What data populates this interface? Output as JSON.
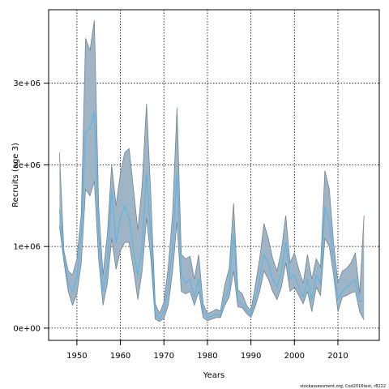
{
  "chart_data": {
    "type": "area",
    "xlabel": "Years",
    "ylabel": "Recruits (age 3)",
    "xlim": [
      1943.5,
      2019.5
    ],
    "ylim": [
      -150000,
      3900000
    ],
    "x_ticks": [
      1950,
      1960,
      1970,
      1980,
      1990,
      2000,
      2010
    ],
    "x_tick_labels": [
      "1950",
      "1960",
      "1970",
      "1980",
      "1990",
      "2000",
      "2010"
    ],
    "y_ticks": [
      0,
      1000000,
      2000000,
      3000000
    ],
    "y_tick_labels": [
      "0e+00",
      "1e+06",
      "2e+06",
      "3e+06"
    ],
    "grid": true,
    "colors": {
      "band_fill": "#9fb4c4",
      "band_edge": "#6f8595",
      "median_line": "#4fb6ee",
      "grid": "#000000"
    },
    "x": [
      1946,
      1947,
      1948,
      1949,
      1950,
      1951,
      1952,
      1953,
      1954,
      1955,
      1956,
      1957,
      1958,
      1959,
      1960,
      1961,
      1962,
      1963,
      1964,
      1965,
      1966,
      1967,
      1968,
      1969,
      1970,
      1971,
      1972,
      1973,
      1974,
      1975,
      1976,
      1977,
      1978,
      1979,
      1980,
      1981,
      1982,
      1983,
      1984,
      1985,
      1986,
      1987,
      1988,
      1989,
      1990,
      1991,
      1992,
      1993,
      1994,
      1995,
      1996,
      1997,
      1998,
      1999,
      2000,
      2001,
      2002,
      2003,
      2004,
      2005,
      2006,
      2007,
      2008,
      2009,
      2010,
      2011,
      2012,
      2013,
      2014,
      2015,
      2016
    ],
    "series": [
      {
        "values": [
          1450000,
          880000,
          550000,
          450000,
          620000,
          1150000,
          2400000,
          2450000,
          2650000,
          1150000,
          450000,
          750000,
          1700000,
          1050000,
          1350000,
          1500000,
          1350000,
          950000,
          650000,
          1000000,
          1900000,
          1100000,
          180000,
          110000,
          200000,
          500000,
          1000000,
          1900000,
          650000,
          550000,
          600000,
          380000,
          600000,
          200000,
          130000,
          150000,
          170000,
          160000,
          350000,
          500000,
          1150000,
          340000,
          300000,
          220000,
          160000,
          350000,
          600000,
          900000,
          800000,
          600000,
          500000,
          700000,
          1050000,
          600000,
          650000,
          500000,
          380000,
          600000,
          350000,
          650000,
          550000,
          1480000,
          1300000,
          800000,
          350000,
          450000,
          500000,
          550000,
          600000,
          330000,
          330000
        ]
      }
    ],
    "lower": [
      1250000,
      820000,
      450000,
      280000,
      420000,
      800000,
      1700000,
      1620000,
      1800000,
      850000,
      280000,
      550000,
      1100000,
      720000,
      950000,
      1050000,
      1050000,
      720000,
      350000,
      700000,
      1350000,
      850000,
      110000,
      80000,
      120000,
      280000,
      700000,
      1300000,
      450000,
      420000,
      450000,
      280000,
      450000,
      130000,
      90000,
      110000,
      130000,
      130000,
      280000,
      380000,
      700000,
      260000,
      250000,
      180000,
      130000,
      270000,
      450000,
      700000,
      600000,
      450000,
      350000,
      500000,
      800000,
      450000,
      500000,
      400000,
      300000,
      450000,
      200000,
      500000,
      400000,
      1100000,
      1000000,
      650000,
      200000,
      380000,
      400000,
      430000,
      450000,
      200000,
      100000
    ],
    "upper": [
      2150000,
      950000,
      700000,
      650000,
      850000,
      1400000,
      3550000,
      3400000,
      3770000,
      1500000,
      650000,
      1150000,
      2000000,
      1500000,
      1900000,
      2150000,
      2200000,
      1700000,
      1200000,
      1750000,
      2750000,
      1600000,
      300000,
      180000,
      320000,
      750000,
      1400000,
      2700000,
      900000,
      850000,
      880000,
      600000,
      900000,
      300000,
      180000,
      200000,
      230000,
      210000,
      530000,
      730000,
      1530000,
      470000,
      420000,
      280000,
      210000,
      520000,
      850000,
      1280000,
      1100000,
      850000,
      700000,
      950000,
      1380000,
      800000,
      920000,
      720000,
      550000,
      900000,
      600000,
      850000,
      750000,
      1930000,
      1700000,
      1050000,
      550000,
      700000,
      730000,
      800000,
      920000,
      420000,
      1380000
    ]
  },
  "footer": {
    "credit": "stockassessment.org, Cod2016test, r8222"
  }
}
